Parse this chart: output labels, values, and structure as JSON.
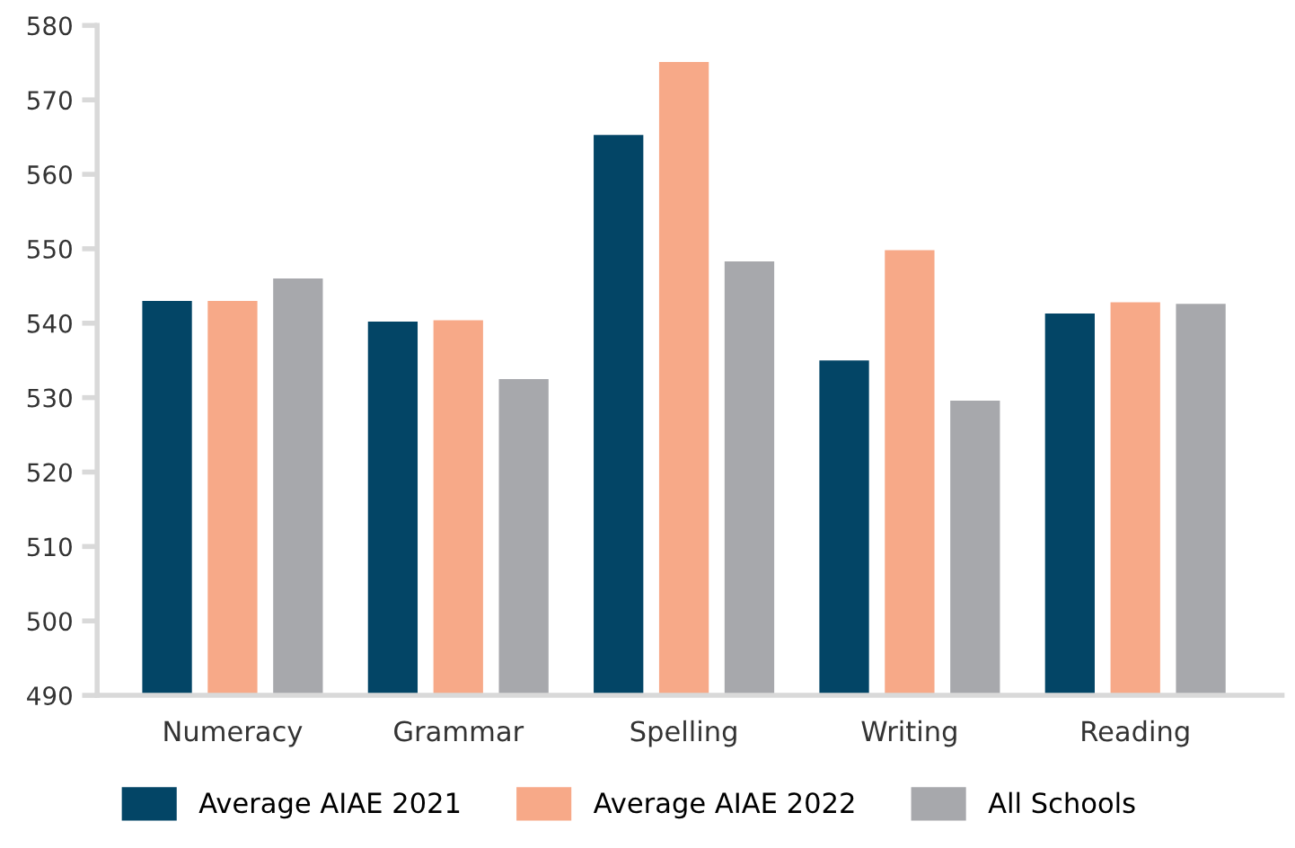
{
  "chart_data": {
    "type": "bar",
    "categories": [
      "Numeracy",
      "Grammar",
      "Spelling",
      "Writing",
      "Reading"
    ],
    "series": [
      {
        "name": "Average AIAE 2021",
        "color": "#034566",
        "values": [
          543,
          540.2,
          565.3,
          535,
          541.3
        ]
      },
      {
        "name": "Average AIAE 2022",
        "color": "#f7a988",
        "values": [
          543,
          540.4,
          575.1,
          549.8,
          542.8
        ]
      },
      {
        "name": "All Schools",
        "color": "#a7a8ac",
        "values": [
          546,
          532.5,
          548.3,
          529.6,
          542.6
        ]
      }
    ],
    "ylim": [
      490,
      580
    ],
    "yticks": [
      490,
      500,
      510,
      520,
      530,
      540,
      550,
      560,
      570,
      580
    ],
    "grid": false,
    "legend": "bottom"
  }
}
